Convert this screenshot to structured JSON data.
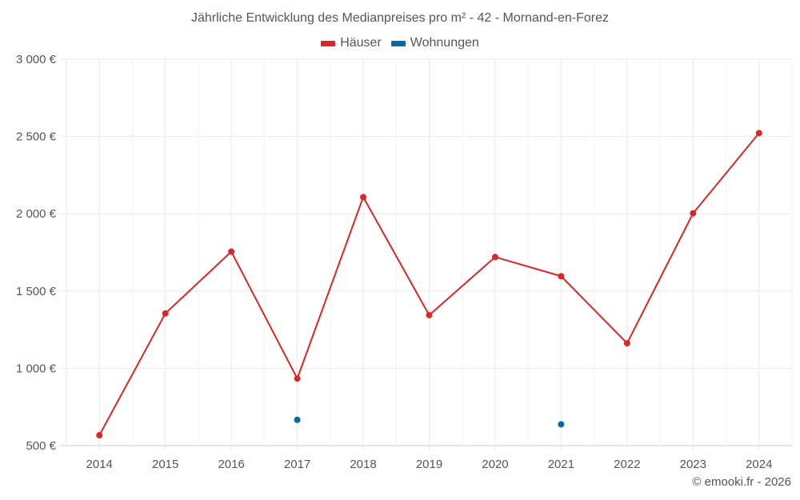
{
  "chart": {
    "title": "Jährliche Entwicklung des Medianpreises pro m² - 42 - Mornand-en-Forez",
    "credit": "© emooki.fr - 2026",
    "legend": [
      {
        "label": "Häuser",
        "color": "#dc2626"
      },
      {
        "label": "Wohnungen",
        "color": "#0868a8"
      }
    ]
  },
  "chart_data": {
    "type": "line",
    "title": "Jährliche Entwicklung des Medianpreises pro m² - 42 - Mornand-en-Forez",
    "xlabel": "",
    "ylabel": "",
    "categories": [
      "2014",
      "2015",
      "2016",
      "2017",
      "2018",
      "2019",
      "2020",
      "2021",
      "2022",
      "2023",
      "2024"
    ],
    "y_ticks": [
      "500 €",
      "1 000 €",
      "1 500 €",
      "2 000 €",
      "2 500 €",
      "3 000 €"
    ],
    "ylim": [
      500,
      3000
    ],
    "grid": true,
    "legend_position": "top",
    "series": [
      {
        "name": "Häuser",
        "color": "#dc2626",
        "values": [
          567,
          1355,
          1755,
          934,
          2108,
          1344,
          1720,
          1596,
          1162,
          2003,
          2522
        ]
      },
      {
        "name": "Wohnungen",
        "color": "#0868a8",
        "values": [
          null,
          null,
          null,
          667,
          null,
          null,
          null,
          638,
          null,
          null,
          null
        ]
      }
    ]
  }
}
